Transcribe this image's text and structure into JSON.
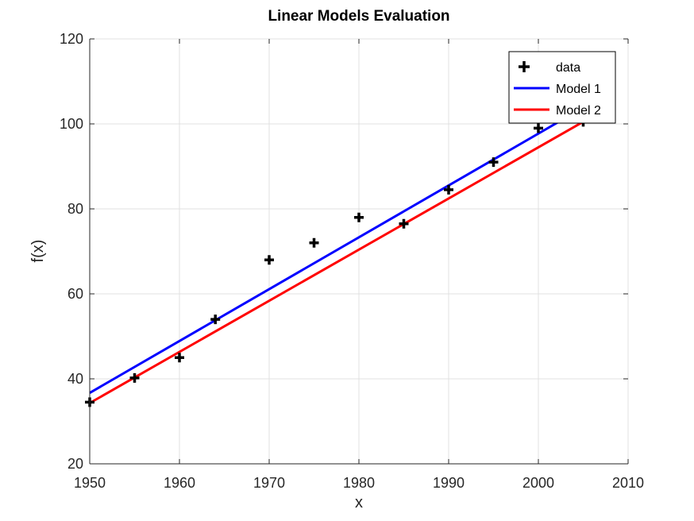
{
  "chart_data": {
    "type": "line",
    "title": "Linear Models Evaluation",
    "xlabel": "x",
    "ylabel": "f(x)",
    "xlim": [
      1950,
      2010
    ],
    "ylim": [
      20,
      120
    ],
    "xticks": [
      1950,
      1960,
      1970,
      1980,
      1990,
      2000,
      2010
    ],
    "yticks": [
      20,
      40,
      60,
      80,
      100,
      120
    ],
    "xtick_labels": [
      "1950",
      "1960",
      "1970",
      "1980",
      "1990",
      "2000",
      "2010"
    ],
    "ytick_labels": [
      "20",
      "40",
      "60",
      "80",
      "100",
      "120"
    ],
    "grid": true,
    "legend_position": "top-right",
    "series": [
      {
        "name": "data",
        "kind": "marker",
        "marker": "plus",
        "color": "#000000",
        "x": [
          1950,
          1955,
          1960,
          1964,
          1970,
          1975,
          1980,
          1985,
          1990,
          1995,
          2000,
          2005
        ],
        "y": [
          34.5,
          40.2,
          45.0,
          54.0,
          68.0,
          72.0,
          78.0,
          76.5,
          84.5,
          91.0,
          99.0,
          100.5
        ]
      },
      {
        "name": "Model 1",
        "kind": "line",
        "color": "#0000ff",
        "x": [
          1950,
          2004
        ],
        "y": [
          36.7,
          102.6
        ]
      },
      {
        "name": "Model 2",
        "kind": "line",
        "color": "#ff0000",
        "x": [
          1950,
          2005
        ],
        "y": [
          34.3,
          100.5
        ]
      }
    ]
  }
}
